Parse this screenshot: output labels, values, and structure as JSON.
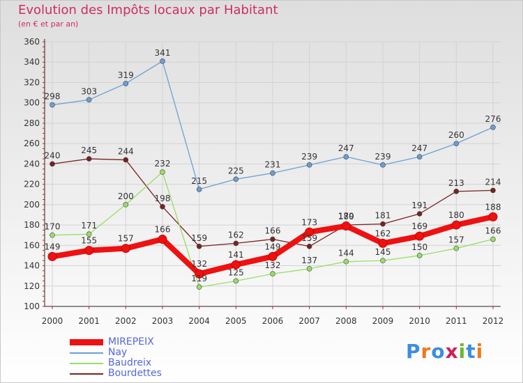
{
  "header": {
    "title": "Evolution des Impôts locaux par Habitant",
    "subtitle": "(en € et par an)"
  },
  "logo": "Proxiti",
  "colors": {
    "title": "#d02c5f",
    "axis_text": "#333333",
    "legend_text": "#5566dd"
  },
  "chart_data": {
    "type": "line",
    "title": "Evolution des Impôts locaux par Habitant",
    "subtitle": "(en € et par an)",
    "xlabel": "",
    "ylabel": "",
    "x": [
      "2000",
      "2001",
      "2002",
      "2003",
      "2004",
      "2005",
      "2006",
      "2007",
      "2008",
      "2009",
      "2010",
      "2011",
      "2012"
    ],
    "ylim": [
      100,
      360
    ],
    "yticks": [
      100,
      120,
      140,
      160,
      180,
      200,
      220,
      240,
      260,
      280,
      300,
      320,
      340,
      360
    ],
    "grid": true,
    "legend_position": "bottom-left",
    "series": [
      {
        "name": "MIREPEIX",
        "color": "#ee1111",
        "values": [
          149,
          155,
          157,
          166,
          132,
          141,
          149,
          173,
          179,
          162,
          169,
          180,
          188
        ]
      },
      {
        "name": "Nay",
        "color": "#6b9fd3",
        "values": [
          298,
          303,
          319,
          341,
          215,
          225,
          231,
          239,
          247,
          239,
          247,
          260,
          276
        ]
      },
      {
        "name": "Baudreix",
        "color": "#99dd66",
        "values": [
          170,
          171,
          200,
          232,
          119,
          125,
          132,
          137,
          144,
          145,
          150,
          157,
          166
        ]
      },
      {
        "name": "Bourdettes",
        "color": "#772222",
        "values": [
          240,
          245,
          244,
          198,
          159,
          162,
          166,
          159,
          180,
          181,
          191,
          213,
          214
        ]
      }
    ]
  }
}
